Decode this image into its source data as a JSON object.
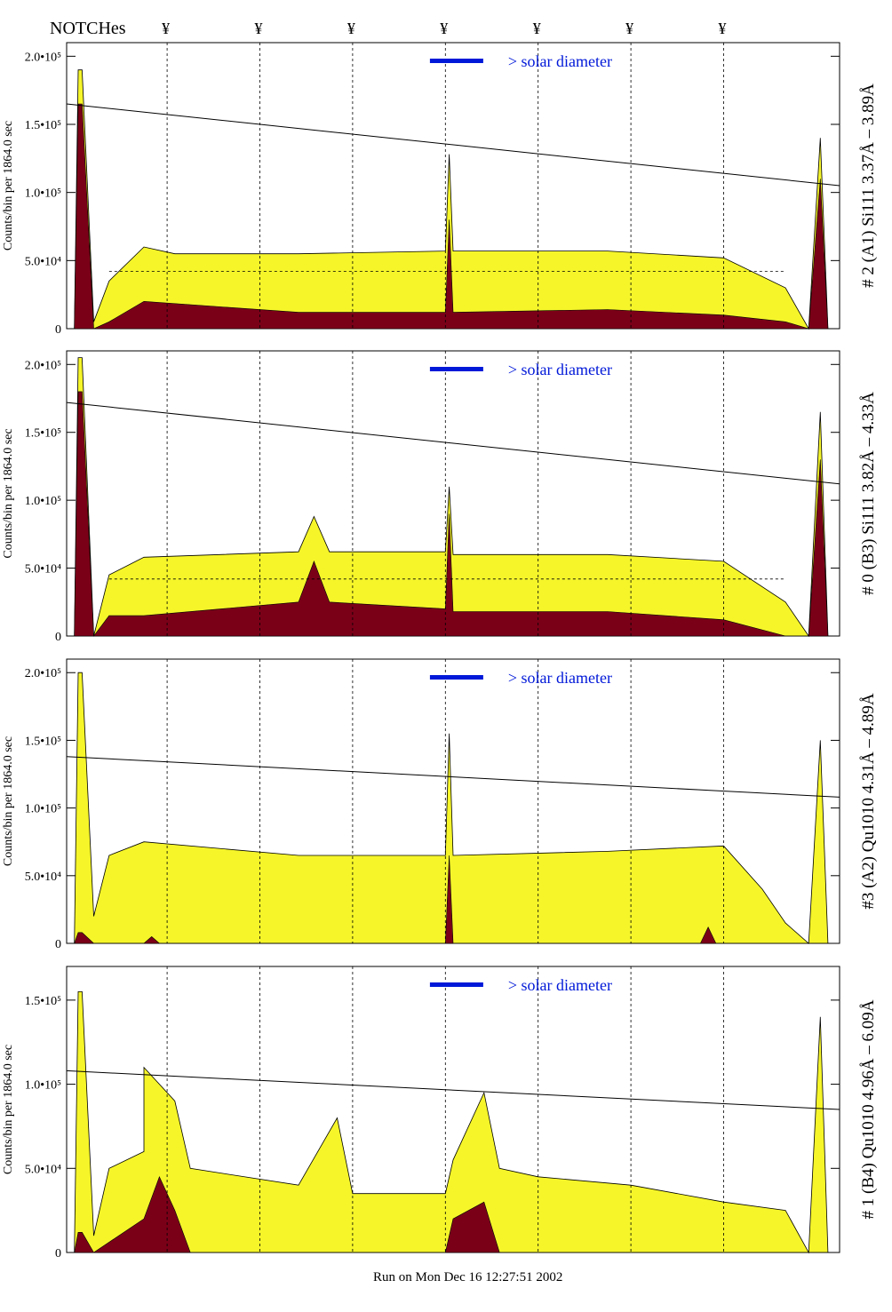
{
  "header": {
    "notches_label": "NOTCHes",
    "notch_symbol": "¥"
  },
  "footer": {
    "run_text": "Run on Mon Dec 16 12:27:51 2002"
  },
  "colors": {
    "fill_yellow": "#f5f52a",
    "fill_maroon": "#7a0018",
    "accent_blue": "#0018d8"
  },
  "chart_data": [
    {
      "type": "area",
      "panel_title": "# 2 (A1) Si111  3.37Å – 3.89Å",
      "ylabel": "Counts/bin per  1864.0 sec",
      "legend": "> solar diameter",
      "y_ticks": [
        "0",
        "5.0•10⁴",
        "1.0•10⁵",
        "1.5•10⁵",
        "2.0•10⁵"
      ],
      "y_tick_values": [
        0,
        50000,
        100000,
        150000,
        200000
      ],
      "ylim": [
        0,
        210000
      ],
      "x_range": [
        0,
        1
      ],
      "notch_x": [
        0.13,
        0.25,
        0.37,
        0.49,
        0.61,
        0.73,
        0.85
      ],
      "yellow_profile": [
        [
          0.01,
          0
        ],
        [
          0.015,
          190000
        ],
        [
          0.02,
          190000
        ],
        [
          0.035,
          5000
        ],
        [
          0.055,
          35000
        ],
        [
          0.1,
          60000
        ],
        [
          0.14,
          55000
        ],
        [
          0.3,
          55000
        ],
        [
          0.49,
          57000
        ],
        [
          0.495,
          128000
        ],
        [
          0.5,
          57000
        ],
        [
          0.7,
          57000
        ],
        [
          0.85,
          52000
        ],
        [
          0.93,
          30000
        ],
        [
          0.96,
          0
        ],
        [
          0.975,
          140000
        ],
        [
          0.985,
          0
        ]
      ],
      "maroon_profile": [
        [
          0.01,
          0
        ],
        [
          0.015,
          165000
        ],
        [
          0.02,
          165000
        ],
        [
          0.035,
          0
        ],
        [
          0.055,
          5000
        ],
        [
          0.1,
          20000
        ],
        [
          0.3,
          12000
        ],
        [
          0.49,
          12000
        ],
        [
          0.495,
          80000
        ],
        [
          0.5,
          12000
        ],
        [
          0.7,
          14000
        ],
        [
          0.85,
          10000
        ],
        [
          0.93,
          5000
        ],
        [
          0.96,
          0
        ],
        [
          0.975,
          110000
        ],
        [
          0.985,
          0
        ]
      ],
      "trend_line": [
        [
          0.0,
          165000
        ],
        [
          1.0,
          105000
        ]
      ],
      "dashed_level": 42000
    },
    {
      "type": "area",
      "panel_title": "# 0 (B3) Si111  3.82Å – 4.33Å",
      "ylabel": "Counts/bin per  1864.0 sec",
      "legend": "> solar diameter",
      "y_ticks": [
        "0",
        "5.0•10⁴",
        "1.0•10⁵",
        "1.5•10⁵",
        "2.0•10⁵"
      ],
      "y_tick_values": [
        0,
        50000,
        100000,
        150000,
        200000
      ],
      "ylim": [
        0,
        210000
      ],
      "x_range": [
        0,
        1
      ],
      "notch_x": [
        0.13,
        0.25,
        0.37,
        0.49,
        0.61,
        0.73,
        0.85
      ],
      "yellow_profile": [
        [
          0.01,
          0
        ],
        [
          0.015,
          205000
        ],
        [
          0.02,
          205000
        ],
        [
          0.035,
          0
        ],
        [
          0.055,
          45000
        ],
        [
          0.1,
          58000
        ],
        [
          0.3,
          62000
        ],
        [
          0.32,
          88000
        ],
        [
          0.34,
          62000
        ],
        [
          0.49,
          62000
        ],
        [
          0.495,
          110000
        ],
        [
          0.5,
          60000
        ],
        [
          0.7,
          60000
        ],
        [
          0.85,
          55000
        ],
        [
          0.93,
          25000
        ],
        [
          0.96,
          0
        ],
        [
          0.975,
          165000
        ],
        [
          0.985,
          0
        ]
      ],
      "maroon_profile": [
        [
          0.01,
          0
        ],
        [
          0.015,
          180000
        ],
        [
          0.02,
          180000
        ],
        [
          0.035,
          0
        ],
        [
          0.055,
          15000
        ],
        [
          0.1,
          15000
        ],
        [
          0.3,
          25000
        ],
        [
          0.32,
          55000
        ],
        [
          0.34,
          25000
        ],
        [
          0.49,
          20000
        ],
        [
          0.495,
          90000
        ],
        [
          0.5,
          18000
        ],
        [
          0.7,
          18000
        ],
        [
          0.85,
          12000
        ],
        [
          0.93,
          0
        ],
        [
          0.96,
          0
        ],
        [
          0.975,
          130000
        ],
        [
          0.985,
          0
        ]
      ],
      "trend_line": [
        [
          0.0,
          172000
        ],
        [
          1.0,
          112000
        ]
      ],
      "dashed_level": 42000
    },
    {
      "type": "area",
      "panel_title": "#3 (A2) Qu1010  4.31Å – 4.89Å",
      "ylabel": "Counts/bin per  1864.0 sec",
      "legend": "> solar diameter",
      "y_ticks": [
        "0",
        "5.0•10⁴",
        "1.0•10⁵",
        "1.5•10⁵",
        "2.0•10⁵"
      ],
      "y_tick_values": [
        0,
        50000,
        100000,
        150000,
        200000
      ],
      "ylim": [
        0,
        210000
      ],
      "x_range": [
        0,
        1
      ],
      "notch_x": [
        0.13,
        0.25,
        0.37,
        0.49,
        0.61,
        0.73,
        0.85
      ],
      "yellow_profile": [
        [
          0.01,
          0
        ],
        [
          0.015,
          200000
        ],
        [
          0.02,
          200000
        ],
        [
          0.035,
          20000
        ],
        [
          0.055,
          65000
        ],
        [
          0.1,
          75000
        ],
        [
          0.3,
          65000
        ],
        [
          0.49,
          65000
        ],
        [
          0.495,
          155000
        ],
        [
          0.5,
          65000
        ],
        [
          0.7,
          68000
        ],
        [
          0.85,
          72000
        ],
        [
          0.9,
          40000
        ],
        [
          0.93,
          15000
        ],
        [
          0.96,
          0
        ],
        [
          0.975,
          150000
        ],
        [
          0.985,
          0
        ]
      ],
      "maroon_profile": [
        [
          0.01,
          0
        ],
        [
          0.015,
          8000
        ],
        [
          0.02,
          8000
        ],
        [
          0.035,
          0
        ],
        [
          0.1,
          0
        ],
        [
          0.11,
          5000
        ],
        [
          0.12,
          0
        ],
        [
          0.49,
          0
        ],
        [
          0.495,
          65000
        ],
        [
          0.5,
          0
        ],
        [
          0.82,
          0
        ],
        [
          0.83,
          12000
        ],
        [
          0.84,
          0
        ],
        [
          0.985,
          0
        ]
      ],
      "trend_line": [
        [
          0.0,
          138000
        ],
        [
          1.0,
          108000
        ]
      ],
      "dashed_level": 0
    },
    {
      "type": "area",
      "panel_title": "# 1 (B4) Qu1010 4.96Å – 6.09Å",
      "ylabel": "Counts/bin per  1864.0 sec",
      "legend": "> solar diameter",
      "y_ticks": [
        "0",
        "5.0•10⁴",
        "1.0•10⁵",
        "1.5•10⁵"
      ],
      "y_tick_values": [
        0,
        50000,
        100000,
        150000
      ],
      "ylim": [
        0,
        170000
      ],
      "x_range": [
        0,
        1
      ],
      "notch_x": [
        0.13,
        0.25,
        0.37,
        0.49,
        0.61,
        0.73,
        0.85
      ],
      "yellow_profile": [
        [
          0.01,
          0
        ],
        [
          0.015,
          155000
        ],
        [
          0.02,
          155000
        ],
        [
          0.035,
          10000
        ],
        [
          0.055,
          50000
        ],
        [
          0.1,
          60000
        ],
        [
          0.1,
          110000
        ],
        [
          0.14,
          90000
        ],
        [
          0.16,
          50000
        ],
        [
          0.3,
          40000
        ],
        [
          0.35,
          80000
        ],
        [
          0.37,
          35000
        ],
        [
          0.49,
          35000
        ],
        [
          0.5,
          55000
        ],
        [
          0.54,
          95000
        ],
        [
          0.56,
          50000
        ],
        [
          0.61,
          45000
        ],
        [
          0.73,
          40000
        ],
        [
          0.85,
          30000
        ],
        [
          0.93,
          25000
        ],
        [
          0.96,
          0
        ],
        [
          0.975,
          140000
        ],
        [
          0.985,
          0
        ]
      ],
      "maroon_profile": [
        [
          0.01,
          0
        ],
        [
          0.015,
          12000
        ],
        [
          0.02,
          12000
        ],
        [
          0.035,
          0
        ],
        [
          0.1,
          20000
        ],
        [
          0.12,
          45000
        ],
        [
          0.14,
          25000
        ],
        [
          0.16,
          0
        ],
        [
          0.49,
          0
        ],
        [
          0.5,
          20000
        ],
        [
          0.54,
          30000
        ],
        [
          0.56,
          0
        ],
        [
          0.985,
          0
        ]
      ],
      "trend_line": [
        [
          0.0,
          108000
        ],
        [
          1.0,
          85000
        ]
      ],
      "dashed_level": 0
    }
  ]
}
